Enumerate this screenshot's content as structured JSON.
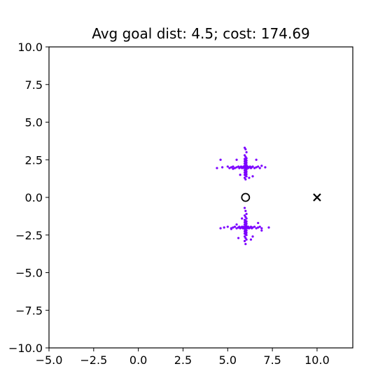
{
  "chart_data": {
    "type": "scatter",
    "title": "Avg goal dist: 4.5; cost: 174.69",
    "xlabel": "",
    "ylabel": "",
    "xlim": [
      -5,
      12
    ],
    "ylim": [
      -10,
      10
    ],
    "grid": false,
    "x_ticks": [
      -5.0,
      -2.5,
      0.0,
      2.5,
      5.0,
      7.5,
      10.0
    ],
    "y_ticks": [
      -10.0,
      -7.5,
      -5.0,
      -2.5,
      0.0,
      2.5,
      5.0,
      7.5,
      10.0
    ],
    "x_tick_labels": [
      "−5.0",
      "−2.5",
      "0.0",
      "2.5",
      "5.0",
      "7.5",
      "10.0"
    ],
    "y_tick_labels": [
      "−10.0",
      "−7.5",
      "−5.0",
      "−2.5",
      "0.0",
      "2.5",
      "5.0",
      "7.5",
      "10.0"
    ],
    "point_color": "#7b00ff",
    "marker_color": "#000000",
    "clusters": [
      {
        "center": [
          6.0,
          2.0
        ],
        "horizontal_x": [
          4.4,
          4.7,
          5.0,
          5.1,
          5.2,
          5.3,
          5.4,
          5.5,
          5.6,
          5.65,
          5.7,
          5.75,
          5.8,
          5.85,
          5.9,
          5.95,
          6.05,
          6.1,
          6.15,
          6.2,
          6.25,
          6.3,
          6.35,
          6.4,
          6.5,
          6.6,
          6.7,
          6.8,
          7.1
        ],
        "vertical_y": [
          3.3,
          3.2,
          3.0,
          2.8,
          2.7,
          2.6,
          2.55,
          2.5,
          2.45,
          2.4,
          2.35,
          2.3,
          2.25,
          2.2,
          2.15,
          2.1,
          1.9,
          1.85,
          1.8,
          1.75,
          1.7,
          1.65,
          1.6,
          1.55,
          1.5,
          1.45,
          1.4,
          1.3,
          1.2
        ],
        "scatter": [
          [
            4.6,
            2.5
          ],
          [
            5.5,
            2.5
          ],
          [
            6.6,
            2.5
          ],
          [
            5.7,
            1.5
          ],
          [
            6.4,
            1.4
          ],
          [
            6.2,
            1.3
          ],
          [
            5.3,
            1.9
          ],
          [
            6.9,
            2.1
          ]
        ]
      },
      {
        "center": [
          6.0,
          -2.0
        ],
        "horizontal_x": [
          4.6,
          4.8,
          5.0,
          5.2,
          5.3,
          5.4,
          5.5,
          5.6,
          5.65,
          5.7,
          5.75,
          5.8,
          5.85,
          5.9,
          5.95,
          6.05,
          6.1,
          6.15,
          6.2,
          6.25,
          6.3,
          6.35,
          6.4,
          6.5,
          6.6,
          6.7,
          6.8,
          6.9,
          7.3
        ],
        "vertical_y": [
          -0.7,
          -0.9,
          -1.1,
          -1.2,
          -1.3,
          -1.4,
          -1.5,
          -1.55,
          -1.6,
          -1.65,
          -1.7,
          -1.75,
          -1.8,
          -1.85,
          -1.9,
          -2.1,
          -2.15,
          -2.2,
          -2.25,
          -2.3,
          -2.35,
          -2.4,
          -2.45,
          -2.5,
          -2.6,
          -2.7,
          -2.8,
          -2.9,
          -3.1
        ],
        "scatter": [
          [
            5.6,
            -2.7
          ],
          [
            6.4,
            -2.6
          ],
          [
            5.2,
            -2.1
          ],
          [
            6.7,
            -1.7
          ],
          [
            5.8,
            -1.4
          ],
          [
            6.3,
            -2.8
          ],
          [
            5.5,
            -1.8
          ],
          [
            6.9,
            -2.2
          ]
        ]
      }
    ],
    "start": {
      "marker": "o",
      "x": 6.0,
      "y": 0.0
    },
    "goal": {
      "marker": "x",
      "x": 10.0,
      "y": 0.0
    }
  }
}
